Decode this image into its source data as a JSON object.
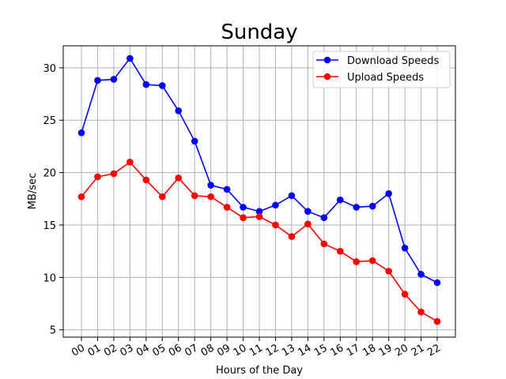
{
  "chart_data": {
    "type": "line",
    "title": "Sunday",
    "xlabel": "Hours of the Day",
    "ylabel": "MB/sec",
    "categories": [
      "00",
      "01",
      "02",
      "03",
      "04",
      "05",
      "06",
      "07",
      "08",
      "09",
      "10",
      "11",
      "12",
      "13",
      "14",
      "15",
      "16",
      "17",
      "18",
      "19",
      "20",
      "21",
      "22"
    ],
    "yticks": [
      5,
      10,
      15,
      20,
      25,
      30
    ],
    "ylim": [
      4.3,
      32.1
    ],
    "grid": true,
    "legend_position": "upper-right",
    "series": [
      {
        "name": "Download Speeds",
        "color": "#0000ff",
        "marker": "circle",
        "values": [
          23.8,
          28.8,
          28.9,
          30.9,
          28.4,
          28.3,
          25.9,
          23.0,
          18.8,
          18.4,
          16.7,
          16.3,
          16.9,
          17.8,
          16.3,
          15.7,
          17.4,
          16.7,
          16.8,
          18.0,
          12.8,
          10.3,
          9.5
        ]
      },
      {
        "name": "Upload Speeds",
        "color": "#ff0000",
        "marker": "circle",
        "values": [
          17.7,
          19.6,
          19.9,
          21.0,
          19.3,
          17.7,
          19.5,
          17.8,
          17.7,
          16.7,
          15.7,
          15.8,
          15.0,
          13.9,
          15.1,
          13.2,
          12.5,
          11.5,
          11.6,
          10.6,
          8.4,
          6.7,
          5.8
        ]
      }
    ]
  }
}
